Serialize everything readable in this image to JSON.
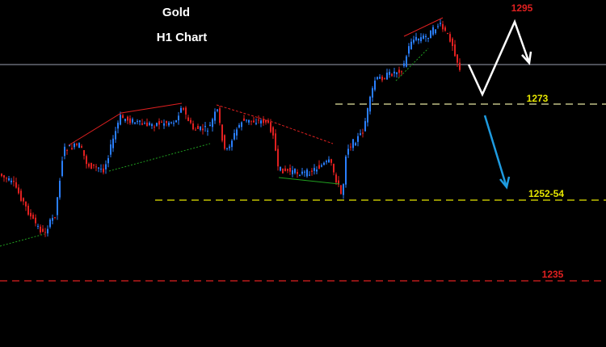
{
  "chart_data": {
    "type": "candlestick",
    "title": "Gold",
    "subtitle": "H1 Chart",
    "annotations": [
      "1295",
      "1273",
      "1252-54",
      "1235"
    ]
  }
}
